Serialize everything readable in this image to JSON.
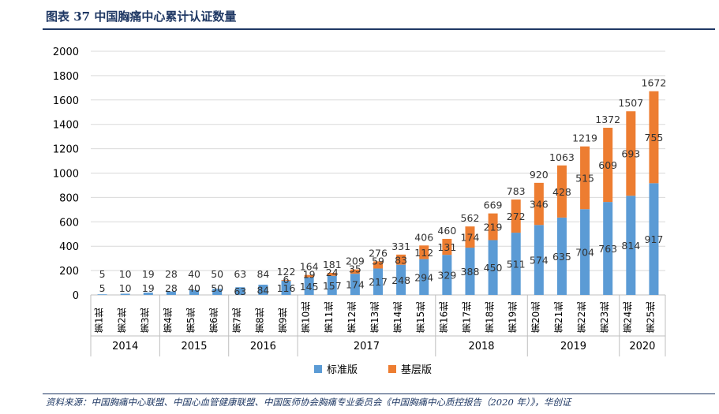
{
  "figure_title": "图表 37   中国胸痛中心累计认证数量",
  "source": "资料来源：中国胸痛中心联盟、中国心血管健康联盟、中国医师协会胸痛专业委员会《中国胸痛中心质控报告（2020 年）》，华创证",
  "chart_data": {
    "type": "bar",
    "stacked": true,
    "categories": [
      "第1批",
      "第2批",
      "第3批",
      "第4批",
      "第5批",
      "第6批",
      "第7批",
      "第8批",
      "第9批",
      "第10批",
      "第11批",
      "第12批",
      "第13批",
      "第14批",
      "第15批",
      "第16批",
      "第17批",
      "第18批",
      "第19批",
      "第20批",
      "第21批",
      "第22批",
      "第23批",
      "第24批",
      "第25批"
    ],
    "year_groups": [
      {
        "label": "2014",
        "count": 3
      },
      {
        "label": "2015",
        "count": 3
      },
      {
        "label": "2016",
        "count": 3
      },
      {
        "label": "2017",
        "count": 6
      },
      {
        "label": "2018",
        "count": 4
      },
      {
        "label": "2019",
        "count": 4
      },
      {
        "label": "2020",
        "count": 2
      }
    ],
    "series": [
      {
        "name": "标准版",
        "color": "#5b9bd5",
        "values": [
          5,
          10,
          19,
          28,
          40,
          50,
          63,
          84,
          116,
          145,
          157,
          174,
          217,
          248,
          294,
          329,
          388,
          450,
          511,
          574,
          635,
          704,
          763,
          814,
          917
        ]
      },
      {
        "name": "基层版",
        "color": "#ed7d31",
        "values": [
          0,
          0,
          0,
          0,
          0,
          0,
          0,
          0,
          6,
          19,
          24,
          35,
          59,
          83,
          112,
          131,
          174,
          219,
          272,
          346,
          428,
          515,
          609,
          693,
          755
        ]
      }
    ],
    "totals": [
      5,
      10,
      19,
      28,
      40,
      50,
      63,
      84,
      122,
      164,
      181,
      209,
      276,
      331,
      406,
      460,
      562,
      669,
      783,
      920,
      1063,
      1219,
      1372,
      1507,
      1672
    ],
    "yticks": [
      0,
      200,
      400,
      600,
      800,
      1000,
      1200,
      1400,
      1600,
      1800,
      2000
    ],
    "ylim": [
      0,
      2000
    ],
    "grid": true,
    "legend_position": "bottom"
  }
}
